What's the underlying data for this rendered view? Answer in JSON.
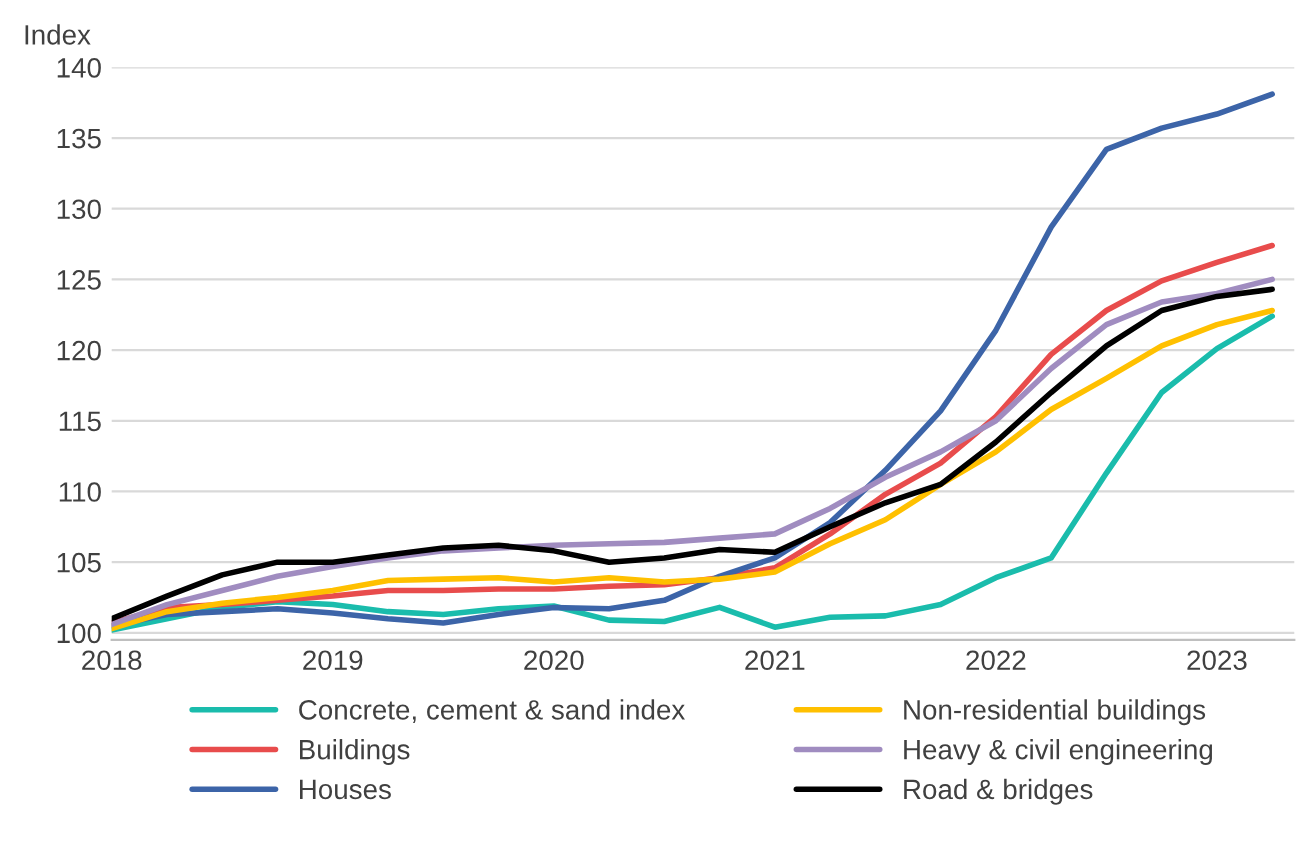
{
  "chart_data": {
    "type": "line",
    "ylabel": "Index",
    "x": [
      2018.0,
      2018.25,
      2018.5,
      2018.75,
      2019.0,
      2019.25,
      2019.5,
      2019.75,
      2020.0,
      2020.25,
      2020.5,
      2020.75,
      2021.0,
      2021.25,
      2021.5,
      2021.75,
      2022.0,
      2022.25,
      2022.5,
      2022.75,
      2023.0,
      2023.25
    ],
    "series": [
      {
        "name": "Concrete, cement & sand index",
        "color": "#1abcac",
        "values": [
          100.2,
          101.0,
          101.8,
          102.2,
          102.0,
          101.5,
          101.3,
          101.7,
          101.9,
          100.9,
          100.8,
          101.8,
          100.4,
          101.1,
          101.2,
          102.0,
          103.9,
          105.3,
          111.3,
          117.0,
          120.1,
          122.4
        ]
      },
      {
        "name": "Buildings",
        "color": "#e84c4c",
        "values": [
          100.7,
          101.8,
          102.0,
          102.3,
          102.6,
          103.0,
          103.0,
          103.1,
          103.1,
          103.3,
          103.4,
          103.9,
          104.6,
          107.0,
          109.8,
          112.0,
          115.3,
          119.7,
          122.8,
          124.9,
          126.2,
          127.4
        ]
      },
      {
        "name": "Houses",
        "color": "#3c64a8",
        "values": [
          100.5,
          101.3,
          101.5,
          101.7,
          101.4,
          101.0,
          100.7,
          101.3,
          101.8,
          101.7,
          102.3,
          104.0,
          105.3,
          107.8,
          111.5,
          115.7,
          121.4,
          128.7,
          134.2,
          135.7,
          136.7,
          138.1
        ]
      },
      {
        "name": "Non-residential buildings",
        "color": "#ffc000",
        "values": [
          100.3,
          101.5,
          102.1,
          102.5,
          103.0,
          103.7,
          103.8,
          103.9,
          103.6,
          103.9,
          103.6,
          103.8,
          104.3,
          106.3,
          108.0,
          110.5,
          112.8,
          115.8,
          118.0,
          120.3,
          121.8,
          122.8
        ]
      },
      {
        "name": "Heavy & civil engineering",
        "color": "#a08cc0",
        "values": [
          100.6,
          102.0,
          103.0,
          104.0,
          104.7,
          105.3,
          105.8,
          106.0,
          106.2,
          106.3,
          106.4,
          106.7,
          107.0,
          108.8,
          111.0,
          112.8,
          115.0,
          118.7,
          121.8,
          123.4,
          124.0,
          125.0
        ]
      },
      {
        "name": "Road & bridges",
        "color": "#000000",
        "values": [
          101.0,
          102.6,
          104.1,
          105.0,
          105.0,
          105.5,
          106.0,
          106.2,
          105.8,
          105.0,
          105.3,
          105.9,
          105.7,
          107.5,
          109.2,
          110.5,
          113.5,
          117.0,
          120.3,
          122.8,
          123.8,
          124.3
        ]
      }
    ],
    "xlim": [
      2018,
      2023.35
    ],
    "xticks": [
      2018,
      2019,
      2020,
      2021,
      2022,
      2023
    ],
    "ylim": [
      99.5,
      140
    ],
    "yticks": [
      100,
      105,
      110,
      115,
      120,
      125,
      130,
      135,
      140
    ],
    "grid": "y",
    "legend": "bottom",
    "marker": "none",
    "line_style": "solid"
  }
}
